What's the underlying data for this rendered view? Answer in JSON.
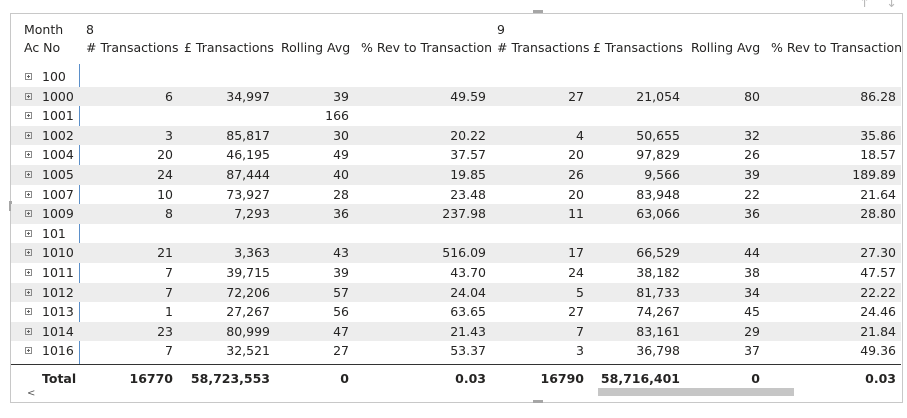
{
  "header": {
    "row_label": "Month",
    "col_label": "Ac No",
    "months": [
      "8",
      "9"
    ],
    "columns": [
      "# Transactions",
      "£ Transactions",
      "Rolling Avg",
      "% Rev to Transaction"
    ]
  },
  "rows": [
    {
      "ac": "100",
      "c": [
        "",
        "",
        "",
        "",
        "",
        "",
        "",
        ""
      ]
    },
    {
      "ac": "1000",
      "c": [
        "6",
        "34,997",
        "39",
        "49.59",
        "27",
        "21,054",
        "80",
        "86.28"
      ]
    },
    {
      "ac": "1001",
      "c": [
        "",
        "",
        "166",
        "",
        "",
        "",
        "",
        ""
      ]
    },
    {
      "ac": "1002",
      "c": [
        "3",
        "85,817",
        "30",
        "20.22",
        "4",
        "50,655",
        "32",
        "35.86"
      ]
    },
    {
      "ac": "1004",
      "c": [
        "20",
        "46,195",
        "49",
        "37.57",
        "20",
        "97,829",
        "26",
        "18.57"
      ]
    },
    {
      "ac": "1005",
      "c": [
        "24",
        "87,444",
        "40",
        "19.85",
        "26",
        "9,566",
        "39",
        "189.89"
      ]
    },
    {
      "ac": "1007",
      "c": [
        "10",
        "73,927",
        "28",
        "23.48",
        "20",
        "83,948",
        "22",
        "21.64"
      ]
    },
    {
      "ac": "1009",
      "c": [
        "8",
        "7,293",
        "36",
        "237.98",
        "11",
        "63,066",
        "36",
        "28.80"
      ]
    },
    {
      "ac": "101",
      "c": [
        "",
        "",
        "",
        "",
        "",
        "",
        "",
        ""
      ]
    },
    {
      "ac": "1010",
      "c": [
        "21",
        "3,363",
        "43",
        "516.09",
        "17",
        "66,529",
        "44",
        "27.30"
      ]
    },
    {
      "ac": "1011",
      "c": [
        "7",
        "39,715",
        "39",
        "43.70",
        "24",
        "38,182",
        "38",
        "47.57"
      ]
    },
    {
      "ac": "1012",
      "c": [
        "7",
        "72,206",
        "57",
        "24.04",
        "5",
        "81,733",
        "34",
        "22.22"
      ]
    },
    {
      "ac": "1013",
      "c": [
        "1",
        "27,267",
        "56",
        "63.65",
        "27",
        "74,267",
        "45",
        "24.46"
      ]
    },
    {
      "ac": "1014",
      "c": [
        "23",
        "80,999",
        "47",
        "21.43",
        "7",
        "83,161",
        "29",
        "21.84"
      ]
    },
    {
      "ac": "1016",
      "c": [
        "7",
        "32,521",
        "27",
        "53.37",
        "3",
        "36,798",
        "37",
        "49.36"
      ]
    }
  ],
  "total": {
    "label": "Total",
    "c": [
      "16770",
      "58,723,553",
      "0",
      "0.03",
      "16790",
      "58,716,401",
      "0",
      "0.03"
    ]
  },
  "scroll_left_glyph": "<",
  "corner_icons": "↑ ↓"
}
